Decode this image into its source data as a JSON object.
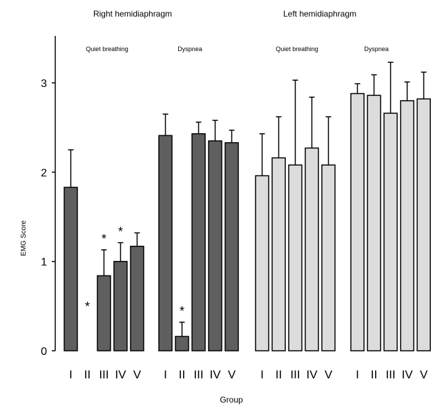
{
  "chart_data": {
    "type": "bar",
    "ylabel": "EMG Score",
    "xlabel": "Group",
    "ylim": [
      0,
      3.5
    ],
    "yticks": [
      0,
      1,
      2,
      3
    ],
    "categories": [
      "I",
      "II",
      "III",
      "IV",
      "V"
    ],
    "colors": {
      "right": "#5f5f5f",
      "left": "#dcdcdc",
      "stroke": "#000000"
    },
    "sides": [
      {
        "name": "Right hemidiaphragm",
        "conditions": [
          {
            "name": "Quiet breathing",
            "values": [
              1.83,
              0,
              0.84,
              1.0,
              1.17
            ],
            "errors": [
              0.42,
              0,
              0.29,
              0.21,
              0.15
            ],
            "significant": [
              false,
              true,
              true,
              true,
              false
            ]
          },
          {
            "name": "Dyspnea",
            "values": [
              2.41,
              0.16,
              2.43,
              2.35,
              2.33
            ],
            "errors": [
              0.24,
              0.16,
              0.13,
              0.23,
              0.14
            ],
            "significant": [
              false,
              true,
              false,
              false,
              false
            ]
          }
        ]
      },
      {
        "name": "Left hemidiaphragm",
        "conditions": [
          {
            "name": "Quiet breathing",
            "values": [
              1.96,
              2.16,
              2.08,
              2.27,
              2.08
            ],
            "errors": [
              0.47,
              0.46,
              0.95,
              0.57,
              0.54
            ],
            "significant": [
              false,
              false,
              false,
              false,
              false
            ]
          },
          {
            "name": "Dyspnea",
            "values": [
              2.88,
              2.86,
              2.66,
              2.8,
              2.82
            ],
            "errors": [
              0.11,
              0.23,
              0.57,
              0.21,
              0.3
            ],
            "significant": [
              false,
              false,
              false,
              false,
              false
            ]
          }
        ]
      }
    ],
    "significance_marker": "*"
  }
}
